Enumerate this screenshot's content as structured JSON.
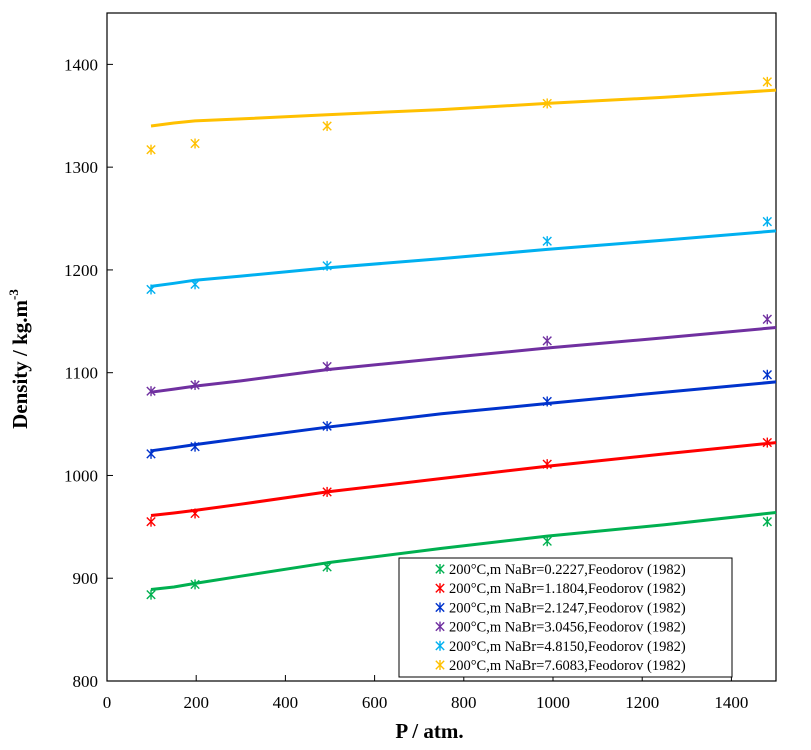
{
  "chart_data": {
    "type": "scatter",
    "title": "",
    "xlabel": "P / atm.",
    "ylabel": "Density / kg.m",
    "ylabel_sup": "-3",
    "xlim": [
      0,
      1500
    ],
    "ylim": [
      800,
      1450
    ],
    "xticks": [
      0,
      200,
      400,
      600,
      800,
      1000,
      1200,
      1400
    ],
    "yticks": [
      800,
      900,
      1000,
      1100,
      1200,
      1300,
      1400
    ],
    "grid": false,
    "legend_position": "bottom-right",
    "marker": "star-cross",
    "series": [
      {
        "name": "200°C,m NaBr=0.2227,Feodorov (1982)",
        "color": "#00b050",
        "points": {
          "x": [
            98.7,
            197.4,
            493.5,
            987,
            1480.5
          ],
          "y": [
            884,
            894,
            911,
            936,
            955
          ]
        },
        "curve": {
          "x": [
            98.7,
            150,
            197.4,
            300,
            493.5,
            750,
            987,
            1250,
            1500
          ],
          "y": [
            889,
            891.5,
            895,
            902,
            915,
            929,
            941,
            952,
            964
          ]
        }
      },
      {
        "name": "200°C,m NaBr=1.1804,Feodorov (1982)",
        "color": "#ff0000",
        "points": {
          "x": [
            98.7,
            197.4,
            493.5,
            987,
            1480.5
          ],
          "y": [
            955,
            963,
            984,
            1011,
            1032
          ]
        },
        "curve": {
          "x": [
            98.7,
            150,
            197.4,
            300,
            493.5,
            750,
            987,
            1250,
            1500
          ],
          "y": [
            961,
            963.5,
            966,
            972,
            984,
            997,
            1009,
            1021,
            1032
          ]
        }
      },
      {
        "name": "200°C,m NaBr=2.1247,Feodorov (1982)",
        "color": "#0033cc",
        "points": {
          "x": [
            98.7,
            197.4,
            493.5,
            987,
            1480.5
          ],
          "y": [
            1021,
            1028,
            1048,
            1072,
            1098
          ]
        },
        "curve": {
          "x": [
            98.7,
            150,
            197.4,
            300,
            493.5,
            750,
            987,
            1250,
            1500
          ],
          "y": [
            1024,
            1027,
            1030,
            1036,
            1047,
            1060,
            1070,
            1081,
            1091
          ]
        }
      },
      {
        "name": "200°C,m NaBr=3.0456,Feodorov (1982)",
        "color": "#7030a0",
        "points": {
          "x": [
            98.7,
            197.4,
            493.5,
            987,
            1480.5
          ],
          "y": [
            1082,
            1088,
            1106,
            1131,
            1152
          ]
        },
        "curve": {
          "x": [
            98.7,
            150,
            197.4,
            300,
            493.5,
            750,
            987,
            1250,
            1500
          ],
          "y": [
            1081,
            1084,
            1087,
            1092,
            1103,
            1114,
            1124,
            1134,
            1144
          ]
        }
      },
      {
        "name": "200°C,m NaBr=4.8150,Feodorov (1982)",
        "color": "#00b0f0",
        "points": {
          "x": [
            98.7,
            197.4,
            493.5,
            987,
            1480.5
          ],
          "y": [
            1181,
            1186,
            1204,
            1228,
            1247
          ]
        },
        "curve": {
          "x": [
            98.7,
            150,
            197.4,
            300,
            493.5,
            750,
            987,
            1250,
            1500
          ],
          "y": [
            1184,
            1187,
            1190,
            1194,
            1202,
            1211,
            1220,
            1229,
            1238
          ]
        }
      },
      {
        "name": "200°C,m NaBr=7.6083,Feodorov (1982)",
        "color": "#ffc000",
        "points": {
          "x": [
            98.7,
            197.4,
            493.5,
            987,
            1480.5
          ],
          "y": [
            1317,
            1323,
            1340,
            1362,
            1383
          ]
        },
        "curve": {
          "x": [
            98.7,
            150,
            197.4,
            300,
            493.5,
            750,
            987,
            1250,
            1500
          ],
          "y": [
            1340,
            1343,
            1345,
            1347,
            1351,
            1356,
            1362,
            1368,
            1375
          ]
        }
      }
    ]
  }
}
